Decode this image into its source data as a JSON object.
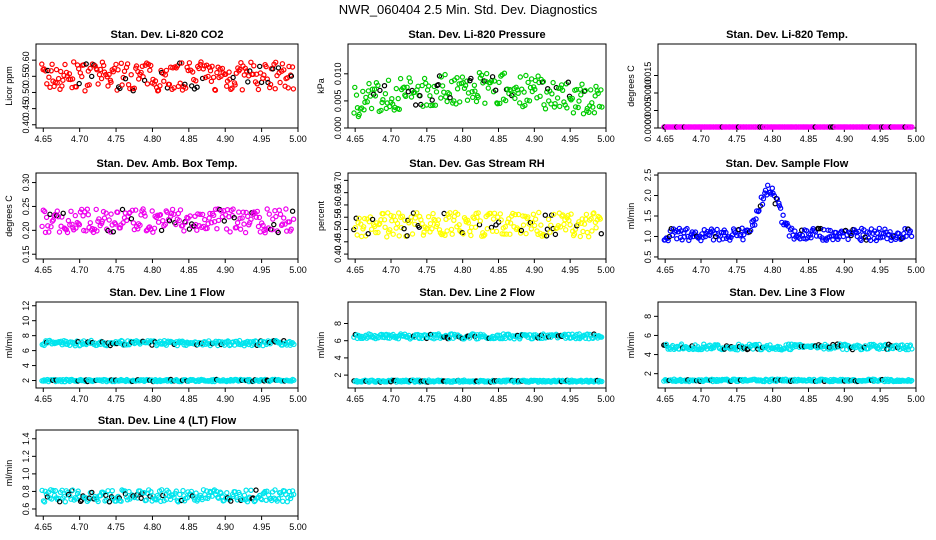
{
  "page": {
    "title": "NWR_060404  2.5 Min. Std. Dev. Diagnostics"
  },
  "colors": {
    "co2": "#ff0000",
    "pressure": "#00cc00",
    "temp": "#ff00ff",
    "box": "#ee00ee",
    "rh": "#ffff00",
    "flow": "#0000ff",
    "line": "#00e5ee",
    "black": "#000000"
  },
  "x_ticks": [
    "4.65",
    "4.70",
    "4.75",
    "4.80",
    "4.85",
    "4.90",
    "4.95",
    "5.00"
  ],
  "chart_data": [
    {
      "id": "co2",
      "type": "scatter",
      "title": "Stan. Dev. Li-820 CO2",
      "ylabel": "Licor ppm",
      "ytick_labels": [
        "0.40",
        "0.45",
        "0.50",
        "0.55",
        "0.60"
      ],
      "ylim": [
        0.39,
        0.65
      ],
      "xlim": [
        4.64,
        5.0
      ],
      "color": "co2",
      "series": [
        {
          "name": "main",
          "center": 0.55,
          "spread": 0.045,
          "pattern": "flat"
        }
      ]
    },
    {
      "id": "pressure",
      "type": "scatter",
      "title": "Stan. Dev. Li-820 Pressure",
      "ylabel": "kPa",
      "ytick_labels": [
        "0.000",
        "0.005",
        "0.010"
      ],
      "ylim": [
        0.0,
        0.0155
      ],
      "xlim": [
        4.64,
        5.0
      ],
      "color": "pressure",
      "series": [
        {
          "name": "main",
          "center": 0.006,
          "spread": 0.003,
          "pattern": "hump"
        }
      ]
    },
    {
      "id": "temp",
      "type": "scatter",
      "title": "Stan. Dev. Li-820 Temp.",
      "ylabel": "degrees C",
      "ytick_labels": [
        "0.0000",
        "0.0005",
        "0.0010",
        "0.0015"
      ],
      "ylim": [
        0.0,
        0.0024
      ],
      "xlim": [
        4.64,
        5.0
      ],
      "color": "temp",
      "series": [
        {
          "name": "main",
          "center": 0.0,
          "spread": 0.0,
          "pattern": "zero"
        }
      ]
    },
    {
      "id": "boxtemp",
      "type": "scatter",
      "title": "Stan. Dev. Amb. Box Temp.",
      "ylabel": "degrees C",
      "ytick_labels": [
        "0.15",
        "0.20",
        "0.25",
        "0.30"
      ],
      "ylim": [
        0.14,
        0.32
      ],
      "xlim": [
        4.64,
        5.0
      ],
      "color": "box",
      "series": [
        {
          "name": "main",
          "center": 0.22,
          "spread": 0.025,
          "pattern": "flat"
        }
      ]
    },
    {
      "id": "rh",
      "type": "scatter",
      "title": "Stan. Dev. Gas Stream RH",
      "ylabel": "percent",
      "ytick_labels": [
        "0.40",
        "0.45",
        "0.50",
        "0.55",
        "0.60",
        "0.65",
        "0.70"
      ],
      "ylim": [
        0.38,
        0.73
      ],
      "xlim": [
        4.64,
        5.0
      ],
      "color": "rh",
      "series": [
        {
          "name": "main",
          "center": 0.52,
          "spread": 0.05,
          "pattern": "flat"
        }
      ]
    },
    {
      "id": "sampleflow",
      "type": "scatter",
      "title": "Stan. Dev. Sample Flow",
      "ylabel": "ml/min",
      "ytick_labels": [
        "0.5",
        "1.0",
        "1.5",
        "2.0",
        "2.5"
      ],
      "ylim": [
        0.45,
        2.55
      ],
      "xlim": [
        4.64,
        5.0
      ],
      "color": "flow",
      "series": [
        {
          "name": "main",
          "center": 1.05,
          "spread": 0.15,
          "pattern": "peak"
        }
      ]
    },
    {
      "id": "line1",
      "type": "scatter",
      "title": "Stan. Dev. Line 1 Flow",
      "ylabel": "ml/min",
      "ytick_labels": [
        "2",
        "4",
        "6",
        "8",
        "10",
        "12"
      ],
      "ylim": [
        1.0,
        12.5
      ],
      "xlim": [
        4.64,
        5.0
      ],
      "color": "line",
      "series": [
        {
          "name": "upper",
          "center": 7.0,
          "spread": 0.35,
          "pattern": "band"
        },
        {
          "name": "lower",
          "center": 2.0,
          "spread": 0.15,
          "pattern": "band"
        }
      ]
    },
    {
      "id": "line2",
      "type": "scatter",
      "title": "Stan. Dev. Line 2 Flow",
      "ylabel": "ml/min",
      "ytick_labels": [
        "2",
        "4",
        "6",
        "8"
      ],
      "ylim": [
        0.5,
        10.5
      ],
      "xlim": [
        4.64,
        5.0
      ],
      "color": "line",
      "series": [
        {
          "name": "upper",
          "center": 6.5,
          "spread": 0.3,
          "pattern": "band"
        },
        {
          "name": "lower",
          "center": 1.3,
          "spread": 0.12,
          "pattern": "band"
        }
      ]
    },
    {
      "id": "line3",
      "type": "scatter",
      "title": "Stan. Dev. Line 3 Flow",
      "ylabel": "ml/min",
      "ytick_labels": [
        "2",
        "4",
        "6",
        "8"
      ],
      "ylim": [
        0.5,
        9.5
      ],
      "xlim": [
        4.64,
        5.0
      ],
      "color": "line",
      "series": [
        {
          "name": "upper",
          "center": 4.8,
          "spread": 0.3,
          "pattern": "band"
        },
        {
          "name": "lower",
          "center": 1.3,
          "spread": 0.12,
          "pattern": "band"
        }
      ]
    },
    {
      "id": "line4",
      "type": "scatter",
      "title": "Stan. Dev. Line 4 (LT) Flow",
      "ylabel": "ml/min",
      "ytick_labels": [
        "0.6",
        "0.8",
        "1.0",
        "1.2",
        "1.4"
      ],
      "ylim": [
        0.52,
        1.5
      ],
      "xlim": [
        4.64,
        5.0
      ],
      "color": "line",
      "series": [
        {
          "name": "main",
          "center": 0.75,
          "spread": 0.07,
          "pattern": "flat"
        }
      ]
    }
  ]
}
